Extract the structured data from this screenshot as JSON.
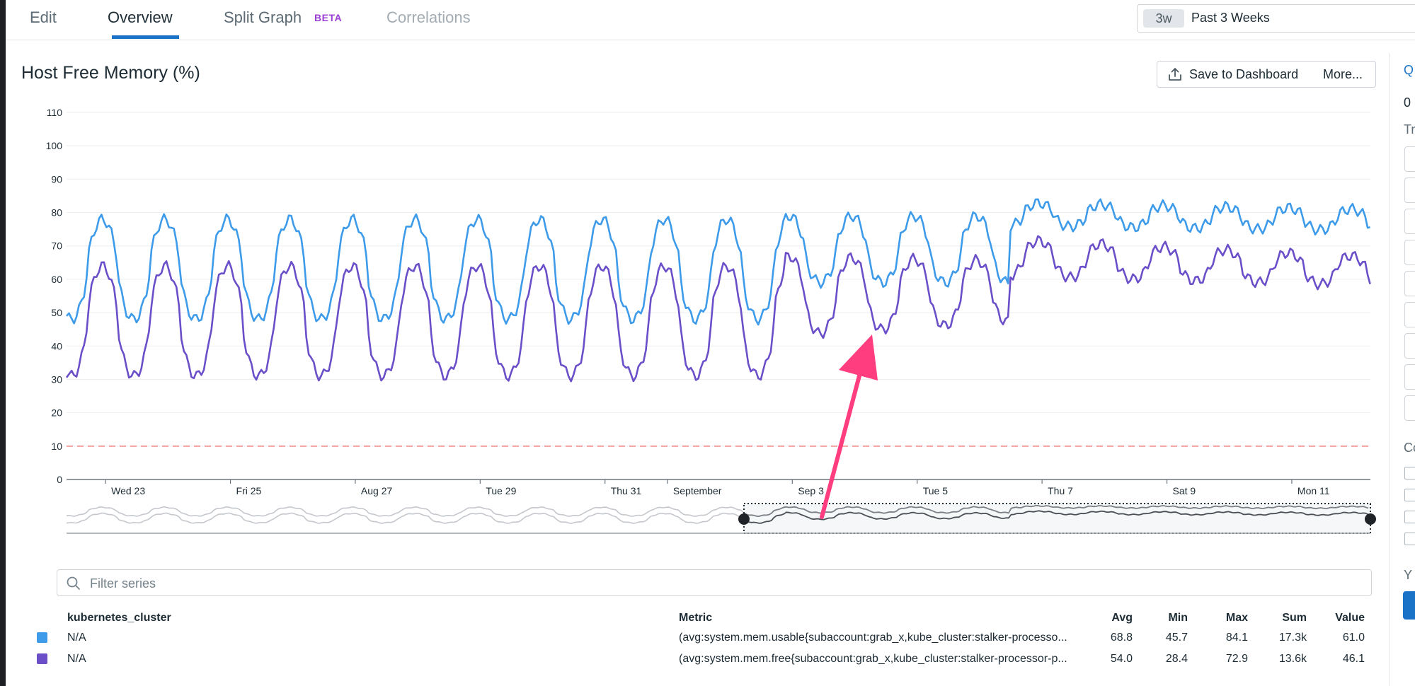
{
  "tabs": [
    {
      "label": "Edit"
    },
    {
      "label": "Overview",
      "active": true
    },
    {
      "label": "Split Graph",
      "badge": "BETA"
    },
    {
      "label": "Correlations"
    }
  ],
  "time_range": {
    "short": "3w",
    "label": "Past 3 Weeks"
  },
  "widget": {
    "title": "Host Free Memory (%)",
    "save_label": "Save to Dashboard",
    "more_label": "More..."
  },
  "right_panel": {
    "q": "Q",
    "zero": "0",
    "tr": "Tr",
    "co": "Co",
    "y": "Y"
  },
  "chart_data": {
    "type": "line",
    "y_ticks": [
      "110",
      "100",
      "90",
      "80",
      "70",
      "60",
      "50",
      "40",
      "30",
      "20",
      "10",
      "0"
    ],
    "ylim": [
      0,
      110
    ],
    "x_tick_labels": [
      "Wed 23",
      "Fri 25",
      "Aug 27",
      "Tue 29",
      "Thu 31",
      "September",
      "Sep 3",
      "Tue 5",
      "Thu 7",
      "Sat 9",
      "Mon 11"
    ],
    "x_range": [
      "Aug 22 15:00",
      "Sep 12 19:00"
    ],
    "threshold": {
      "value": 10,
      "color": "#f2a0a0",
      "style": "dashed"
    },
    "series": [
      {
        "color": "#3d9be9",
        "daily_peak_max": 84.1,
        "daily_min": 45.7,
        "avg": 68.8
      },
      {
        "color": "#6b4fc9",
        "daily_peak_max": 72.9,
        "daily_min": 28.4,
        "avg": 54.0
      }
    ],
    "grid": true,
    "navigator": {
      "selected_from": "Tue 5 (approx)",
      "selected_to": "end"
    }
  },
  "filter": {
    "placeholder": "Filter series"
  },
  "legend": {
    "headers": {
      "group": "kubernetes_cluster",
      "metric": "Metric",
      "avg": "Avg",
      "min": "Min",
      "max": "Max",
      "sum": "Sum",
      "value": "Value"
    },
    "rows": [
      {
        "color": "#3d9be9",
        "group": "N/A",
        "metric": "(avg:system.mem.usable{subaccount:grab_x,kube_cluster:stalker-processo...",
        "avg": "68.8",
        "min": "45.7",
        "max": "84.1",
        "sum": "17.3k",
        "value": "61.0"
      },
      {
        "color": "#6b4fc9",
        "group": "N/A",
        "metric": "(avg:system.mem.free{subaccount:grab_x,kube_cluster:stalker-processor-p...",
        "avg": "54.0",
        "min": "28.4",
        "max": "72.9",
        "sum": "13.6k",
        "value": "46.1"
      }
    ]
  },
  "annotation": {
    "arrow_color": "#ff3d7f"
  }
}
